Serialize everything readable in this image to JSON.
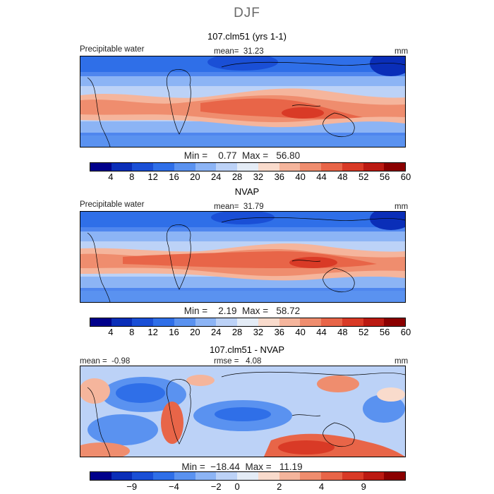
{
  "figure_title": "DJF",
  "colors": {
    "pw_scale": [
      "#00008b",
      "#0a2eb8",
      "#1a4fd6",
      "#2f6fe8",
      "#5a92f0",
      "#8cb4f5",
      "#bcd2f7",
      "#e4ecf6",
      "#f9dbcc",
      "#f5b59c",
      "#ef8d6e",
      "#e86548",
      "#d93a26",
      "#bb1a12",
      "#8b0000"
    ],
    "diff_scale": [
      "#00008b",
      "#0a2eb8",
      "#1a4fd6",
      "#2f6fe8",
      "#5a92f0",
      "#8cb4f5",
      "#bcd2f7",
      "#e4ecf6",
      "#f9dbcc",
      "#f5b59c",
      "#ef8d6e",
      "#e86548",
      "#d93a26",
      "#bb1a12",
      "#8b0000"
    ]
  },
  "chart_data": [
    {
      "type": "heatmap",
      "title": "107.clm51 (yrs 1-1)",
      "variable_label": "Precipitable water",
      "mean_label": "mean=",
      "mean": "31.23",
      "units": "mm",
      "min_label": "Min =",
      "min": "0.77",
      "max_label": "Max =",
      "max": "56.80",
      "colorbar_ticks": [
        "4",
        "8",
        "12",
        "16",
        "20",
        "24",
        "28",
        "32",
        "36",
        "40",
        "44",
        "48",
        "52",
        "56",
        "60"
      ]
    },
    {
      "type": "heatmap",
      "title": "NVAP",
      "variable_label": "Precipitable water",
      "mean_label": "mean=",
      "mean": "31.79",
      "units": "mm",
      "min_label": "Min =",
      "min": "2.19",
      "max_label": "Max =",
      "max": "58.72",
      "colorbar_ticks": [
        "4",
        "8",
        "12",
        "16",
        "20",
        "24",
        "28",
        "32",
        "36",
        "40",
        "44",
        "48",
        "52",
        "56",
        "60"
      ]
    },
    {
      "type": "heatmap",
      "title": "107.clm51 - NVAP",
      "mean_label": "mean =",
      "mean": "-0.98",
      "rmse_label": "rmse =",
      "rmse": "4.08",
      "units": "mm",
      "min_label": "Min =",
      "min": "−18.44",
      "max_label": "Max =",
      "max": "11.19",
      "colorbar_ticks": [
        "−9",
        "−4",
        "−2",
        "0",
        "2",
        "4",
        "9"
      ]
    }
  ]
}
